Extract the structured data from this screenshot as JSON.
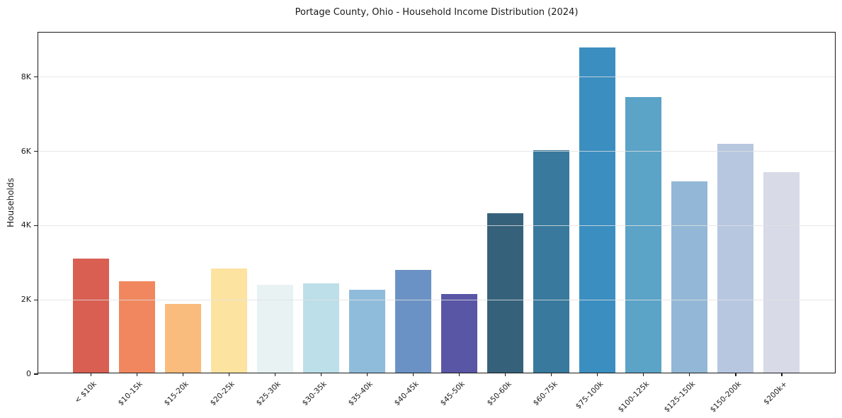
{
  "page": {
    "background_color": "#ffffff",
    "text_color": "#1a1a1a"
  },
  "chart_data": {
    "type": "bar",
    "title": "Portage County, Ohio - Household Income Distribution (2024)",
    "xlabel": "",
    "ylabel": "Households",
    "categories": [
      "< $10k",
      "$10-15k",
      "$15-20k",
      "$20-25k",
      "$25-30k",
      "$30-35k",
      "$35-40k",
      "$40-45k",
      "$45-50k",
      "$50-60k",
      "$60-75k",
      "$75-100k",
      "$100-125k",
      "$125-150k",
      "$150-200k",
      "$200k+"
    ],
    "values": [
      3070,
      2470,
      1860,
      2810,
      2360,
      2400,
      2230,
      2770,
      2120,
      4290,
      6000,
      8760,
      7420,
      5150,
      6160,
      5410
    ],
    "bar_colors": [
      "#d85f52",
      "#f1875f",
      "#fabc7d",
      "#fce3a0",
      "#e8f2f2",
      "#bcdfe9",
      "#90bcdb",
      "#6b92c4",
      "#5956a6",
      "#36617a",
      "#38799d",
      "#3a8ec0",
      "#5ba3c7",
      "#93b7d6",
      "#b7c7e0",
      "#d8dae8"
    ],
    "ylim": [
      0,
      9200
    ],
    "yticks": [
      {
        "value": 0,
        "label": "0"
      },
      {
        "value": 2000,
        "label": "2K"
      },
      {
        "value": 4000,
        "label": "4K"
      },
      {
        "value": 6000,
        "label": "6K"
      },
      {
        "value": 8000,
        "label": "8K"
      }
    ],
    "grid": "horizontal",
    "grid_color": "#e8e8e8",
    "axis_color": "#1a1a1a",
    "legend_position": "none",
    "xtick_rotation_deg": 45
  }
}
